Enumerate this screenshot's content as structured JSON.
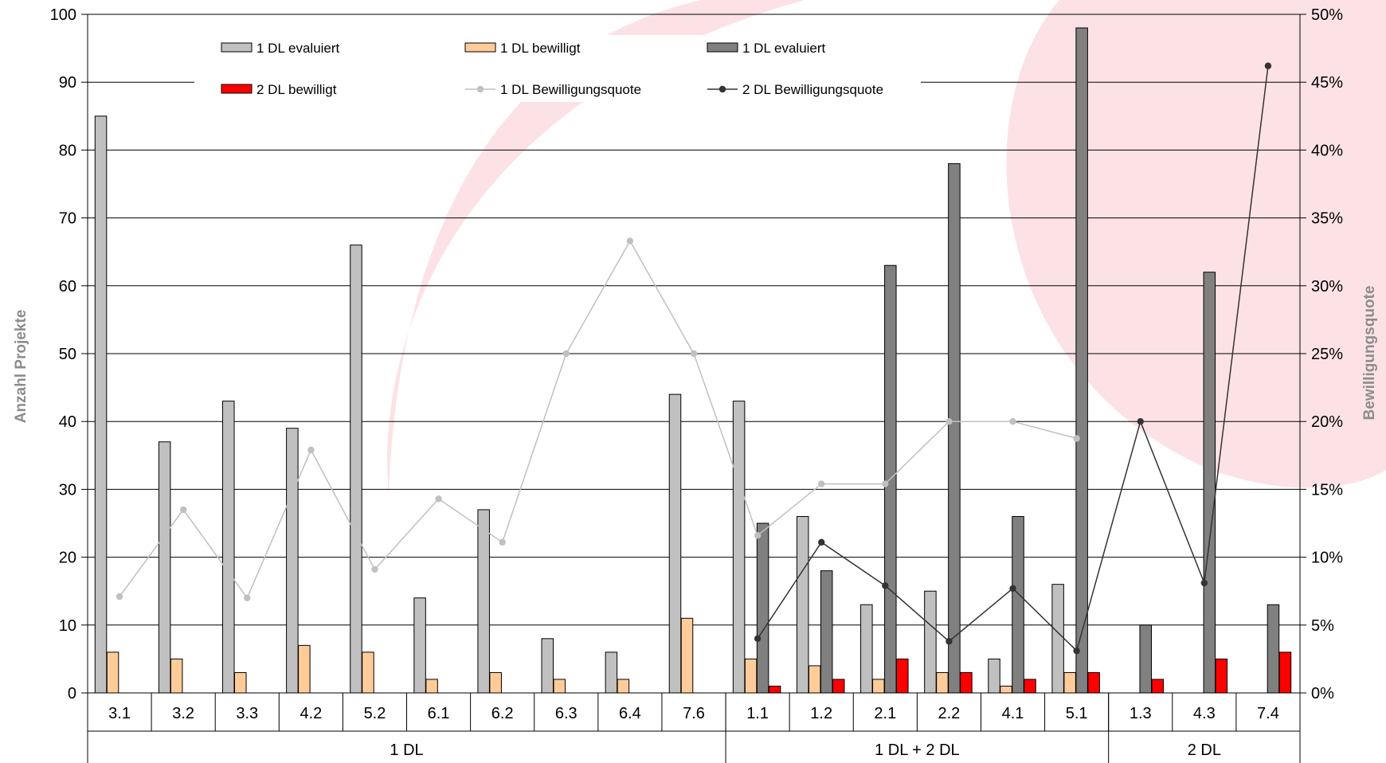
{
  "colors": {
    "eval1": "#c0c0c0",
    "bew1": "#ffcc99",
    "eval2": "#808080",
    "bew2": "#ff0000",
    "rate1": "#c0c0c0",
    "rate2": "#333333",
    "grid": "#000000",
    "watermark": "#fde2e5"
  },
  "chart_data": {
    "type": "bar",
    "ylabel": "Anzahl Projekte",
    "y2label": "Bewilligungsquote",
    "ylim": [
      0,
      100
    ],
    "yticks": [
      "0",
      "10",
      "20",
      "30",
      "40",
      "50",
      "60",
      "70",
      "80",
      "90",
      "100"
    ],
    "y2lim": [
      0,
      0.5
    ],
    "y2ticks": [
      "0%",
      "5%",
      "10%",
      "15%",
      "20%",
      "25%",
      "30%",
      "35%",
      "40%",
      "45%",
      "50%"
    ],
    "grid": true,
    "legend_position": "top",
    "categories": [
      "3.1",
      "3.2",
      "3.3",
      "4.2",
      "5.2",
      "6.1",
      "6.2",
      "6.3",
      "6.4",
      "7.6",
      "1.1",
      "1.2",
      "2.1",
      "2.2",
      "4.1",
      "5.1",
      "1.3",
      "4.3",
      "7.4"
    ],
    "groups": [
      {
        "label": "1 DL",
        "count": 10
      },
      {
        "label": "1 DL + 2 DL",
        "count": 6
      },
      {
        "label": "2 DL",
        "count": 3
      }
    ],
    "series": [
      {
        "name": "1 DL evaluiert",
        "kind": "bar",
        "color_key": "eval1",
        "values": [
          85,
          37,
          43,
          39,
          66,
          14,
          27,
          8,
          6,
          44,
          43,
          26,
          13,
          15,
          5,
          16,
          null,
          null,
          null
        ]
      },
      {
        "name": "1 DL bewilligt",
        "kind": "bar",
        "color_key": "bew1",
        "values": [
          6,
          5,
          3,
          7,
          6,
          2,
          3,
          2,
          2,
          11,
          5,
          4,
          2,
          3,
          1,
          3,
          null,
          null,
          null
        ]
      },
      {
        "name": "1 DL evaluiert",
        "kind": "bar",
        "color_key": "eval2",
        "values": [
          null,
          null,
          null,
          null,
          null,
          null,
          null,
          null,
          null,
          null,
          25,
          18,
          63,
          78,
          26,
          98,
          10,
          62,
          13
        ]
      },
      {
        "name": "2 DL bewilligt",
        "kind": "bar",
        "color_key": "bew2",
        "values": [
          null,
          null,
          null,
          null,
          null,
          null,
          null,
          null,
          null,
          null,
          1,
          2,
          5,
          3,
          2,
          3,
          2,
          5,
          6
        ]
      },
      {
        "name": "1 DL Bewilligungsquote",
        "kind": "line",
        "axis": "right",
        "color_key": "rate1",
        "values": [
          0.071,
          0.135,
          0.07,
          0.179,
          0.091,
          0.143,
          0.111,
          0.25,
          0.333,
          0.25,
          0.116,
          0.154,
          0.154,
          0.2,
          0.2,
          0.1875,
          null,
          null,
          null
        ]
      },
      {
        "name": "2 DL Bewilligungsquote",
        "kind": "line",
        "axis": "right",
        "color_key": "rate2",
        "values": [
          null,
          null,
          null,
          null,
          null,
          null,
          null,
          null,
          null,
          null,
          0.04,
          0.111,
          0.079,
          0.038,
          0.077,
          0.031,
          0.2,
          0.081,
          0.462
        ]
      }
    ]
  }
}
